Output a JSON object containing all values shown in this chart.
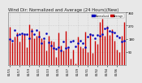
{
  "title": "Wind Dir: Normalized and Average (24 Hours)(New)",
  "background_color": "#e8e8e8",
  "plot_bg_color": "#e8e8e8",
  "bar_color": "#cc0000",
  "avg_color": "#0000bb",
  "legend_labels": [
    "Normalized",
    "Average"
  ],
  "legend_colors": [
    "#0000bb",
    "#cc0000"
  ],
  "ylim": [
    0,
    360
  ],
  "ytick_right": true,
  "n_points": 48,
  "seed": 7,
  "grid_color": "#bbbbbb",
  "title_fontsize": 3.8,
  "tick_fontsize": 2.8,
  "bar_width": 1.0
}
